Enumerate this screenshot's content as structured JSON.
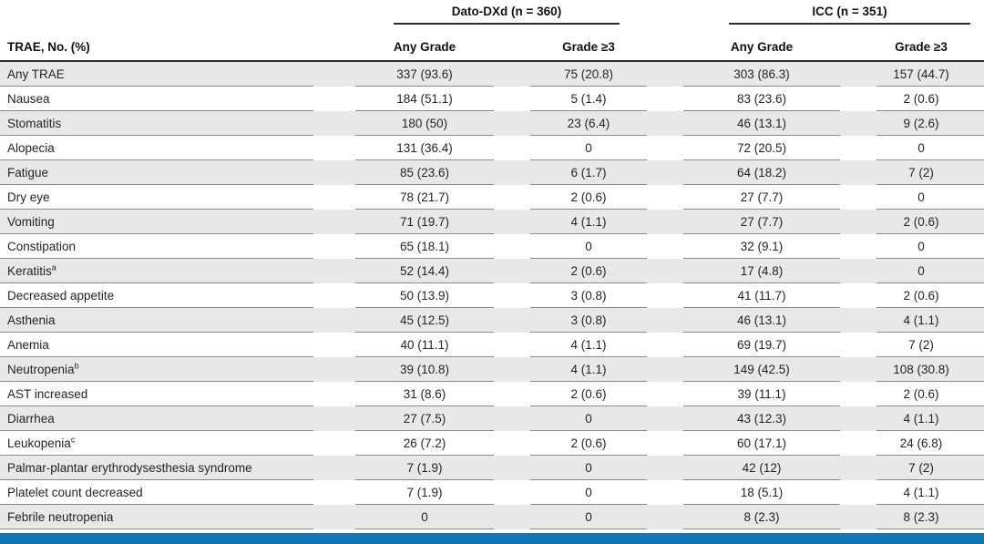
{
  "table": {
    "row_header_label": "TRAE, No. (%)",
    "groups": [
      {
        "label": "Dato-DXd (n = 360)",
        "columns": [
          "Any Grade",
          "Grade ≥3"
        ]
      },
      {
        "label": "ICC (n = 351)",
        "columns": [
          "Any Grade",
          "Grade ≥3"
        ]
      }
    ],
    "rows": [
      {
        "label": "Any TRAE",
        "sup": "",
        "values": [
          "337 (93.6)",
          "75 (20.8)",
          "303 (86.3)",
          "157 (44.7)"
        ]
      },
      {
        "label": "Nausea",
        "sup": "",
        "values": [
          "184 (51.1)",
          "5 (1.4)",
          "83 (23.6)",
          "2 (0.6)"
        ]
      },
      {
        "label": "Stomatitis",
        "sup": "",
        "values": [
          "180 (50)",
          "23 (6.4)",
          "46 (13.1)",
          "9 (2.6)"
        ]
      },
      {
        "label": "Alopecia",
        "sup": "",
        "values": [
          "131 (36.4)",
          "0",
          "72 (20.5)",
          "0"
        ]
      },
      {
        "label": "Fatigue",
        "sup": "",
        "values": [
          "85 (23.6)",
          "6 (1.7)",
          "64 (18.2)",
          "7 (2)"
        ]
      },
      {
        "label": "Dry eye",
        "sup": "",
        "values": [
          "78 (21.7)",
          "2 (0.6)",
          "27 (7.7)",
          "0"
        ]
      },
      {
        "label": "Vomiting",
        "sup": "",
        "values": [
          "71 (19.7)",
          "4 (1.1)",
          "27 (7.7)",
          "2 (0.6)"
        ]
      },
      {
        "label": "Constipation",
        "sup": "",
        "values": [
          "65 (18.1)",
          "0",
          "32 (9.1)",
          "0"
        ]
      },
      {
        "label": "Keratitis",
        "sup": "a",
        "values": [
          "52 (14.4)",
          "2 (0.6)",
          "17 (4.8)",
          "0"
        ]
      },
      {
        "label": "Decreased appetite",
        "sup": "",
        "values": [
          "50 (13.9)",
          "3 (0.8)",
          "41 (11.7)",
          "2 (0.6)"
        ]
      },
      {
        "label": "Asthenia",
        "sup": "",
        "values": [
          "45 (12.5)",
          "3 (0.8)",
          "46 (13.1)",
          "4 (1.1)"
        ]
      },
      {
        "label": "Anemia",
        "sup": "",
        "values": [
          "40 (11.1)",
          "4 (1.1)",
          "69 (19.7)",
          "7 (2)"
        ]
      },
      {
        "label": "Neutropenia",
        "sup": "b",
        "values": [
          "39 (10.8)",
          "4 (1.1)",
          "149 (42.5)",
          "108 (30.8)"
        ]
      },
      {
        "label": "AST increased",
        "sup": "",
        "values": [
          "31 (8.6)",
          "2 (0.6)",
          "39 (11.1)",
          "2 (0.6)"
        ]
      },
      {
        "label": "Diarrhea",
        "sup": "",
        "values": [
          "27 (7.5)",
          "0",
          "43 (12.3)",
          "4 (1.1)"
        ]
      },
      {
        "label": "Leukopenia",
        "sup": "c",
        "values": [
          "26 (7.2)",
          "2 (0.6)",
          "60 (17.1)",
          "24 (6.8)"
        ]
      },
      {
        "label": "Palmar-plantar erythrodysesthesia syndrome",
        "sup": "",
        "values": [
          "7 (1.9)",
          "0",
          "42 (12)",
          "7 (2)"
        ]
      },
      {
        "label": "Platelet count decreased",
        "sup": "",
        "values": [
          "7 (1.9)",
          "0",
          "18 (5.1)",
          "4 (1.1)"
        ]
      },
      {
        "label": "Febrile neutropenia",
        "sup": "",
        "values": [
          "0",
          "0",
          "8 (2.3)",
          "8 (2.3)"
        ]
      }
    ]
  },
  "colors": {
    "accent_bar": "#1276b2",
    "row_stripe": "#e8e8e8",
    "header_rule": "#2e2e2e",
    "row_rule": "#8a8a8a"
  }
}
